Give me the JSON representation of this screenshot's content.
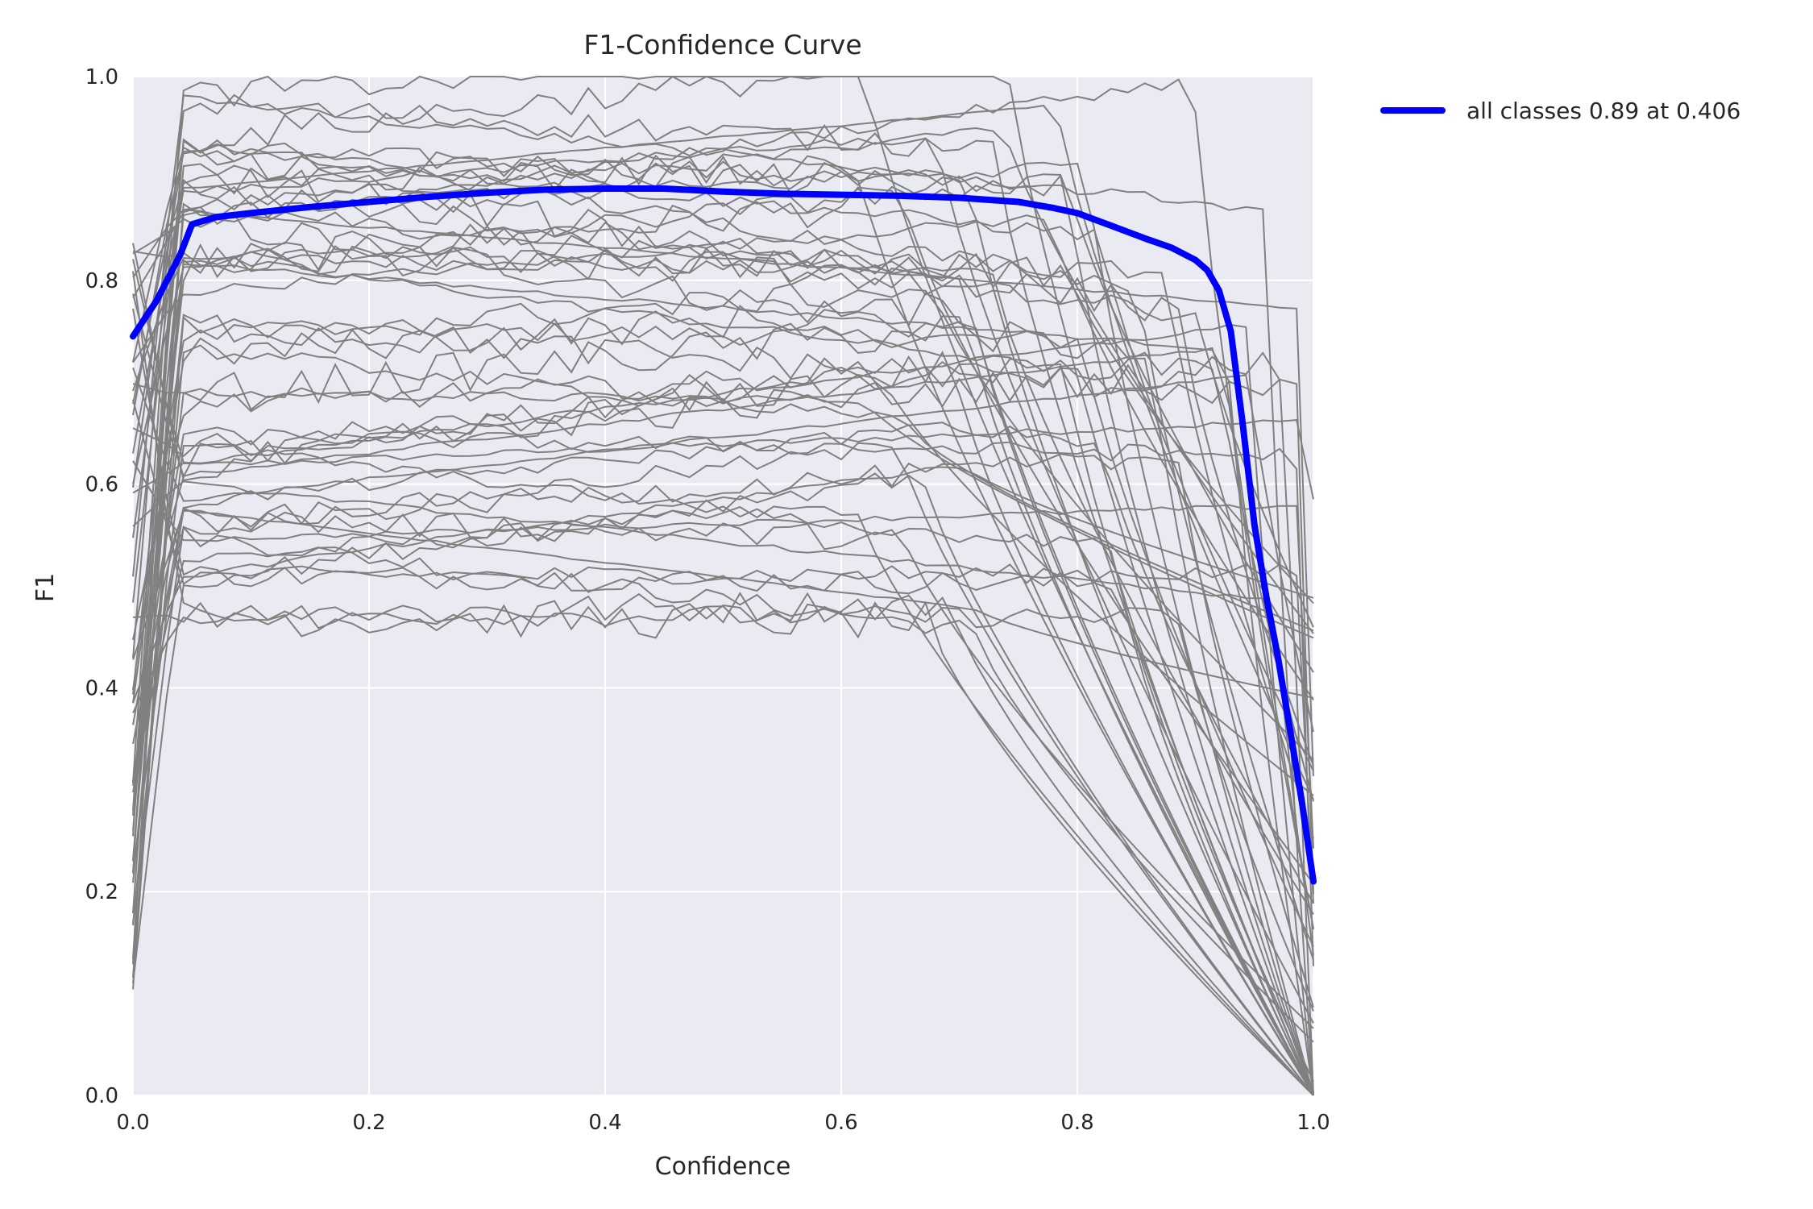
{
  "chart_data": {
    "type": "line",
    "title": "F1-Confidence Curve",
    "xlabel": "Confidence",
    "ylabel": "F1",
    "xlim": [
      0.0,
      1.0
    ],
    "ylim": [
      0.0,
      1.0
    ],
    "xticks": [
      "0.0",
      "0.2",
      "0.4",
      "0.6",
      "0.8",
      "1.0"
    ],
    "yticks": [
      "0.0",
      "0.2",
      "0.4",
      "0.6",
      "0.8",
      "1.0"
    ],
    "grid": true,
    "legend_position": "outside-top-right",
    "colors": {
      "background": "#eaeaf2",
      "grid": "#ffffff",
      "per_class": "#808080",
      "all_classes": "#0000ff"
    },
    "series": [
      {
        "name": "all classes 0.89 at 0.406",
        "color": "#0000ff",
        "x": [
          0.0,
          0.02,
          0.04,
          0.05,
          0.07,
          0.1,
          0.15,
          0.2,
          0.25,
          0.3,
          0.35,
          0.4,
          0.45,
          0.5,
          0.55,
          0.6,
          0.65,
          0.7,
          0.75,
          0.78,
          0.8,
          0.83,
          0.86,
          0.88,
          0.9,
          0.91,
          0.92,
          0.93,
          0.94,
          0.95,
          0.96,
          0.97,
          0.98,
          0.99,
          1.0
        ],
        "y": [
          0.745,
          0.78,
          0.825,
          0.855,
          0.862,
          0.866,
          0.872,
          0.877,
          0.882,
          0.886,
          0.889,
          0.89,
          0.89,
          0.887,
          0.885,
          0.884,
          0.883,
          0.881,
          0.877,
          0.871,
          0.866,
          0.853,
          0.84,
          0.832,
          0.82,
          0.81,
          0.79,
          0.75,
          0.66,
          0.56,
          0.49,
          0.43,
          0.36,
          0.29,
          0.21
        ]
      }
    ]
  }
}
